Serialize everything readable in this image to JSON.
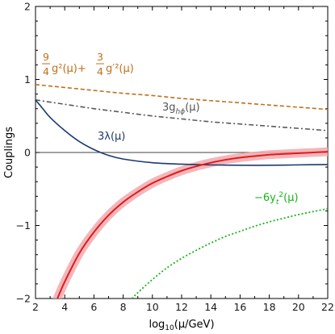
{
  "chart_data": {
    "type": "line",
    "xlabel": "log₁₀(μ/GeV)",
    "ylabel": "Couplings",
    "xlim": [
      2,
      22
    ],
    "ylim": [
      -2,
      2
    ],
    "x_ticks": [
      "2",
      "4",
      "6",
      "8",
      "10",
      "12",
      "14",
      "16",
      "18",
      "20",
      "22"
    ],
    "y_ticks": [
      "2",
      "1",
      "0",
      "−1",
      "−2"
    ],
    "zero_line": true,
    "grid": false,
    "series": [
      {
        "label_parts": [
          "9/4 g²(μ) + 3/4 g′²(μ)"
        ],
        "color": "#c0701b",
        "style": "dashed",
        "x": [
          2,
          4,
          6,
          8,
          10,
          12,
          14,
          16,
          18,
          20,
          22
        ],
        "y": [
          0.93,
          0.89,
          0.85,
          0.81,
          0.78,
          0.74,
          0.71,
          0.68,
          0.65,
          0.62,
          0.59
        ]
      },
      {
        "name": "3g_hϕ(μ)",
        "color": "#5a5a5a",
        "style": "dashdot",
        "x": [
          2,
          4,
          6,
          8,
          10,
          12,
          14,
          16,
          18,
          20,
          22
        ],
        "y": [
          0.72,
          0.66,
          0.6,
          0.55,
          0.5,
          0.46,
          0.42,
          0.39,
          0.36,
          0.33,
          0.3
        ]
      },
      {
        "name": "3λ(μ)",
        "color": "#1c3a6e",
        "style": "solid",
        "x": [
          2,
          2.5,
          3,
          4,
          5,
          6,
          7,
          8,
          10,
          12,
          14,
          16,
          18,
          20,
          22
        ],
        "y": [
          0.72,
          0.6,
          0.48,
          0.3,
          0.15,
          0.04,
          -0.04,
          -0.09,
          -0.14,
          -0.16,
          -0.17,
          -0.175,
          -0.175,
          -0.17,
          -0.165
        ]
      },
      {
        "name": "",
        "color": "#e01c1c",
        "band_color": "#f2a9ae",
        "band_halfwidth": 0.06,
        "style": "solid",
        "x": [
          3.5,
          4,
          5,
          6,
          7,
          8,
          9,
          10,
          11,
          12,
          13,
          14,
          15,
          16,
          17,
          18,
          19,
          20,
          21,
          22
        ],
        "y": [
          -2.0,
          -1.77,
          -1.38,
          -1.09,
          -0.86,
          -0.68,
          -0.54,
          -0.42,
          -0.33,
          -0.25,
          -0.19,
          -0.14,
          -0.1,
          -0.07,
          -0.05,
          -0.03,
          -0.02,
          -0.01,
          0.0,
          0.01
        ]
      },
      {
        "name": "−6y_t²(μ)",
        "color": "#18b418",
        "style": "dotted",
        "x": [
          8.6,
          9,
          10,
          11,
          12,
          13,
          14,
          15,
          16,
          17,
          18,
          19,
          20,
          21,
          22
        ],
        "y": [
          -2.0,
          -1.92,
          -1.74,
          -1.58,
          -1.45,
          -1.34,
          -1.24,
          -1.15,
          -1.08,
          -1.01,
          -0.95,
          -0.9,
          -0.85,
          -0.81,
          -0.77
        ]
      }
    ]
  }
}
